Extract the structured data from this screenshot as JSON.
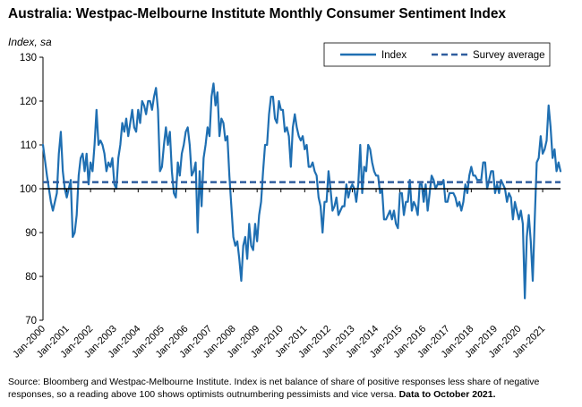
{
  "title": "Australia: Westpac-Melbourne Institute Monthly Consumer Sentiment Index",
  "y_unit": "Index, sa",
  "footnote": {
    "text": "Source: Bloomberg and Westpac-Melbourne Institute.  Index is net balance of share of positive responses less share of negative responses, so a reading above 100 shows optimists outnumbering pessimists and vice versa.",
    "bold": "Data to October 2021."
  },
  "colors": {
    "index_line": "#1F6FB2",
    "average_line": "#2F5D9E",
    "baseline": "#000000"
  },
  "chart_data": {
    "type": "line",
    "title": "Australia: Westpac-Melbourne Institute Monthly Consumer Sentiment Index",
    "ylabel": "Index, sa",
    "xlabel": "",
    "ylim": [
      70,
      130
    ],
    "yticks": [
      70,
      80,
      90,
      100,
      110,
      120,
      130
    ],
    "x_tick_labels": [
      "Jan-2000",
      "Jan-2001",
      "Jan-2002",
      "Jan-2003",
      "Jan-2004",
      "Jan-2005",
      "Jan-2006",
      "Jan-2007",
      "Jan-2008",
      "Jan-2009",
      "Jan-2010",
      "Jan-2011",
      "Jan-2012",
      "Jan-2013",
      "Jan-2014",
      "Jan-2015",
      "Jan-2016",
      "Jan-2017",
      "Jan-2018",
      "Jan-2019",
      "Jan-2020",
      "Jan-2021"
    ],
    "x_range": [
      "2000-01",
      "2021-10"
    ],
    "legend_position": "top-right",
    "grid": false,
    "baseline": 100,
    "series": [
      {
        "name": "Index",
        "style": "solid",
        "points": [
          [
            "2000-01",
            110
          ],
          [
            "2000-03",
            103
          ],
          [
            "2000-05",
            97
          ],
          [
            "2000-06",
            95
          ],
          [
            "2000-08",
            99
          ],
          [
            "2000-09",
            108
          ],
          [
            "2000-10",
            113
          ],
          [
            "2000-11",
            104
          ],
          [
            "2000-12",
            100
          ],
          [
            "2001-01",
            98
          ],
          [
            "2001-02",
            100
          ],
          [
            "2001-03",
            102
          ],
          [
            "2001-04",
            89
          ],
          [
            "2001-05",
            90
          ],
          [
            "2001-06",
            94
          ],
          [
            "2001-07",
            103
          ],
          [
            "2001-08",
            107
          ],
          [
            "2001-09",
            108
          ],
          [
            "2001-10",
            104
          ],
          [
            "2001-11",
            108
          ],
          [
            "2001-12",
            101
          ],
          [
            "2002-01",
            106
          ],
          [
            "2002-02",
            104
          ],
          [
            "2002-03",
            110
          ],
          [
            "2002-04",
            118
          ],
          [
            "2002-05",
            110
          ],
          [
            "2002-06",
            111
          ],
          [
            "2002-07",
            110
          ],
          [
            "2002-08",
            108
          ],
          [
            "2002-09",
            104
          ],
          [
            "2002-10",
            106
          ],
          [
            "2002-11",
            105
          ],
          [
            "2002-12",
            107
          ],
          [
            "2003-01",
            101
          ],
          [
            "2003-02",
            100
          ],
          [
            "2003-03",
            107
          ],
          [
            "2003-04",
            110
          ],
          [
            "2003-05",
            115
          ],
          [
            "2003-06",
            113
          ],
          [
            "2003-07",
            116
          ],
          [
            "2003-08",
            112
          ],
          [
            "2003-09",
            115
          ],
          [
            "2003-10",
            118
          ],
          [
            "2003-11",
            114
          ],
          [
            "2003-12",
            113
          ],
          [
            "2004-01",
            118
          ],
          [
            "2004-02",
            115
          ],
          [
            "2004-03",
            120
          ],
          [
            "2004-04",
            119
          ],
          [
            "2004-05",
            117
          ],
          [
            "2004-06",
            120
          ],
          [
            "2004-07",
            120
          ],
          [
            "2004-08",
            118
          ],
          [
            "2004-09",
            121
          ],
          [
            "2004-10",
            123
          ],
          [
            "2004-11",
            118
          ],
          [
            "2004-12",
            104
          ],
          [
            "2005-01",
            105
          ],
          [
            "2005-02",
            110
          ],
          [
            "2005-03",
            114
          ],
          [
            "2005-04",
            110
          ],
          [
            "2005-05",
            113
          ],
          [
            "2005-06",
            104
          ],
          [
            "2005-07",
            99
          ],
          [
            "2005-08",
            98
          ],
          [
            "2005-09",
            106
          ],
          [
            "2005-10",
            103
          ],
          [
            "2005-11",
            108
          ],
          [
            "2005-12",
            110
          ],
          [
            "2006-01",
            113
          ],
          [
            "2006-02",
            114
          ],
          [
            "2006-03",
            110
          ],
          [
            "2006-04",
            103
          ],
          [
            "2006-05",
            104
          ],
          [
            "2006-06",
            106
          ],
          [
            "2006-07",
            90
          ],
          [
            "2006-08",
            104
          ],
          [
            "2006-09",
            96
          ],
          [
            "2006-10",
            107
          ],
          [
            "2006-11",
            110
          ],
          [
            "2006-12",
            114
          ],
          [
            "2007-01",
            112
          ],
          [
            "2007-02",
            121
          ],
          [
            "2007-03",
            124
          ],
          [
            "2007-04",
            119
          ],
          [
            "2007-05",
            122
          ],
          [
            "2007-06",
            112
          ],
          [
            "2007-07",
            116
          ],
          [
            "2007-08",
            115
          ],
          [
            "2007-09",
            111
          ],
          [
            "2007-10",
            112
          ],
          [
            "2007-11",
            103
          ],
          [
            "2007-12",
            96
          ],
          [
            "2008-01",
            89
          ],
          [
            "2008-02",
            87
          ],
          [
            "2008-03",
            88
          ],
          [
            "2008-04",
            84
          ],
          [
            "2008-05",
            79
          ],
          [
            "2008-06",
            87
          ],
          [
            "2008-07",
            89
          ],
          [
            "2008-08",
            84
          ],
          [
            "2008-09",
            92
          ],
          [
            "2008-10",
            87
          ],
          [
            "2008-11",
            86
          ],
          [
            "2008-12",
            92
          ],
          [
            "2009-01",
            88
          ],
          [
            "2009-02",
            94
          ],
          [
            "2009-03",
            97
          ],
          [
            "2009-04",
            104
          ],
          [
            "2009-05",
            110
          ],
          [
            "2009-06",
            110
          ],
          [
            "2009-07",
            117
          ],
          [
            "2009-08",
            121
          ],
          [
            "2009-09",
            121
          ],
          [
            "2009-10",
            116
          ],
          [
            "2009-11",
            115
          ],
          [
            "2009-12",
            120
          ],
          [
            "2010-01",
            118
          ],
          [
            "2010-02",
            118
          ],
          [
            "2010-03",
            113
          ],
          [
            "2010-04",
            114
          ],
          [
            "2010-05",
            112
          ],
          [
            "2010-06",
            105
          ],
          [
            "2010-07",
            114
          ],
          [
            "2010-08",
            117
          ],
          [
            "2010-09",
            114
          ],
          [
            "2010-10",
            112
          ],
          [
            "2010-11",
            111
          ],
          [
            "2010-12",
            112
          ],
          [
            "2011-01",
            109
          ],
          [
            "2011-02",
            110
          ],
          [
            "2011-03",
            105
          ],
          [
            "2011-04",
            105
          ],
          [
            "2011-05",
            106
          ],
          [
            "2011-06",
            104
          ],
          [
            "2011-07",
            103
          ],
          [
            "2011-08",
            98
          ],
          [
            "2011-09",
            96
          ],
          [
            "2011-10",
            90
          ],
          [
            "2011-11",
            97
          ],
          [
            "2011-12",
            97
          ],
          [
            "2012-01",
            104
          ],
          [
            "2012-02",
            100
          ],
          [
            "2012-03",
            95
          ],
          [
            "2012-04",
            96
          ],
          [
            "2012-05",
            98
          ],
          [
            "2012-06",
            94
          ],
          [
            "2012-07",
            95
          ],
          [
            "2012-08",
            96
          ],
          [
            "2012-09",
            96
          ],
          [
            "2012-10",
            101
          ],
          [
            "2012-11",
            98
          ],
          [
            "2012-12",
            100
          ],
          [
            "2013-01",
            101
          ],
          [
            "2013-02",
            100
          ],
          [
            "2013-03",
            97
          ],
          [
            "2013-04",
            101
          ],
          [
            "2013-05",
            110
          ],
          [
            "2013-06",
            99
          ],
          [
            "2013-07",
            105
          ],
          [
            "2013-08",
            104
          ],
          [
            "2013-09",
            110
          ],
          [
            "2013-10",
            109
          ],
          [
            "2013-11",
            106
          ],
          [
            "2013-12",
            104
          ],
          [
            "2014-01",
            103
          ],
          [
            "2014-02",
            103
          ],
          [
            "2014-03",
            99
          ],
          [
            "2014-04",
            100
          ],
          [
            "2014-05",
            93
          ],
          [
            "2014-06",
            93
          ],
          [
            "2014-07",
            94
          ],
          [
            "2014-08",
            95
          ],
          [
            "2014-09",
            93
          ],
          [
            "2014-10",
            95
          ],
          [
            "2014-11",
            92
          ],
          [
            "2014-12",
            91
          ],
          [
            "2015-01",
            99
          ],
          [
            "2015-02",
            99
          ],
          [
            "2015-03",
            94
          ],
          [
            "2015-04",
            97
          ],
          [
            "2015-05",
            97
          ],
          [
            "2015-06",
            102
          ],
          [
            "2015-07",
            95
          ],
          [
            "2015-08",
            97
          ],
          [
            "2015-09",
            96
          ],
          [
            "2015-10",
            94
          ],
          [
            "2015-11",
            101
          ],
          [
            "2015-12",
            101
          ],
          [
            "2016-01",
            97
          ],
          [
            "2016-02",
            101
          ],
          [
            "2016-03",
            95
          ],
          [
            "2016-04",
            99
          ],
          [
            "2016-05",
            103
          ],
          [
            "2016-06",
            102
          ],
          [
            "2016-07",
            100
          ],
          [
            "2016-08",
            101
          ],
          [
            "2016-09",
            101
          ],
          [
            "2016-10",
            101
          ],
          [
            "2016-11",
            102
          ],
          [
            "2016-12",
            97
          ],
          [
            "2017-01",
            97
          ],
          [
            "2017-02",
            99
          ],
          [
            "2017-03",
            99
          ],
          [
            "2017-04",
            99
          ],
          [
            "2017-05",
            98
          ],
          [
            "2017-06",
            96
          ],
          [
            "2017-07",
            97
          ],
          [
            "2017-08",
            95
          ],
          [
            "2017-09",
            97
          ],
          [
            "2017-10",
            101
          ],
          [
            "2017-11",
            99
          ],
          [
            "2017-12",
            103
          ],
          [
            "2018-01",
            105
          ],
          [
            "2018-02",
            103
          ],
          [
            "2018-03",
            103
          ],
          [
            "2018-04",
            102
          ],
          [
            "2018-05",
            102
          ],
          [
            "2018-06",
            102
          ],
          [
            "2018-07",
            106
          ],
          [
            "2018-08",
            106
          ],
          [
            "2018-09",
            100
          ],
          [
            "2018-10",
            102
          ],
          [
            "2018-11",
            104
          ],
          [
            "2018-12",
            104
          ],
          [
            "2019-01",
            99
          ],
          [
            "2019-02",
            101
          ],
          [
            "2019-03",
            99
          ],
          [
            "2019-04",
            102
          ],
          [
            "2019-05",
            101
          ],
          [
            "2019-06",
            100
          ],
          [
            "2019-07",
            97
          ],
          [
            "2019-08",
            99
          ],
          [
            "2019-09",
            98
          ],
          [
            "2019-10",
            93
          ],
          [
            "2019-11",
            97
          ],
          [
            "2019-12",
            95
          ],
          [
            "2020-01",
            93
          ],
          [
            "2020-02",
            95
          ],
          [
            "2020-03",
            92
          ],
          [
            "2020-04",
            75
          ],
          [
            "2020-05",
            89
          ],
          [
            "2020-06",
            94
          ],
          [
            "2020-07",
            88
          ],
          [
            "2020-08",
            79
          ],
          [
            "2020-09",
            93
          ],
          [
            "2020-10",
            106
          ],
          [
            "2020-11",
            107
          ],
          [
            "2020-12",
            112
          ],
          [
            "2021-01",
            108
          ],
          [
            "2021-02",
            109
          ],
          [
            "2021-03",
            111
          ],
          [
            "2021-04",
            119
          ],
          [
            "2021-05",
            114
          ],
          [
            "2021-06",
            107
          ],
          [
            "2021-07",
            109
          ],
          [
            "2021-08",
            104
          ],
          [
            "2021-09",
            106
          ],
          [
            "2021-10",
            104
          ]
        ]
      },
      {
        "name": "Survey average",
        "style": "dashed",
        "value": 101.5
      }
    ]
  }
}
